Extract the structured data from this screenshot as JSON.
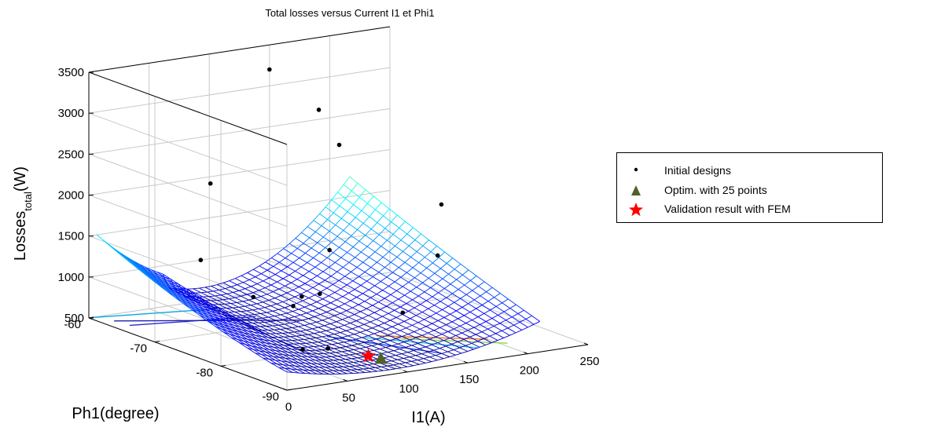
{
  "chart_data": {
    "type": "surface3d",
    "title": "Total losses versus Current I1 et Phi1",
    "xlabel": "I1(A)",
    "ylabel": "Ph1(degree)",
    "zlabel_base": "Losses",
    "zlabel_sub": "total",
    "zlabel_unit": "(W)",
    "xlim": [
      0,
      250
    ],
    "ylim": [
      -90,
      -60
    ],
    "zlim": [
      500,
      3500
    ],
    "x_ticks": [
      "0",
      "50",
      "100",
      "150",
      "200",
      "250"
    ],
    "y_ticks": [
      "-60",
      "-70",
      "-80",
      "-90"
    ],
    "z_ticks": [
      "500",
      "1000",
      "1500",
      "2000",
      "2500",
      "3000",
      "3500"
    ],
    "grid": true,
    "legend_position": "right",
    "colormap": "jet",
    "series": [
      {
        "name": "Initial designs",
        "marker": "dot",
        "color": "#000000",
        "points": [
          {
            "x": 150,
            "y": -60,
            "z": 3200
          },
          {
            "x": 180,
            "y": -62,
            "z": 2700
          },
          {
            "x": 175,
            "y": -66,
            "z": 2400
          },
          {
            "x": 205,
            "y": -76,
            "z": 1900
          },
          {
            "x": 90,
            "y": -62,
            "z": 2000
          },
          {
            "x": 180,
            "y": -80,
            "z": 1450
          },
          {
            "x": 5,
            "y": -84,
            "z": 1450
          },
          {
            "x": 145,
            "y": -70,
            "z": 1300
          },
          {
            "x": 60,
            "y": -66,
            "z": 1250
          },
          {
            "x": 60,
            "y": -80,
            "z": 1100
          },
          {
            "x": 100,
            "y": -74,
            "z": 950
          },
          {
            "x": 115,
            "y": -74,
            "z": 950
          },
          {
            "x": 140,
            "y": -82,
            "z": 900
          },
          {
            "x": 45,
            "y": -88,
            "z": 850
          },
          {
            "x": 35,
            "y": -86,
            "z": 800
          }
        ]
      },
      {
        "name": "Optim. with 25 points",
        "marker": "triangle",
        "color": "#4f6228",
        "points": [
          {
            "x": 100,
            "y": -86,
            "z": 540
          }
        ]
      },
      {
        "name": "Validation result with FEM",
        "marker": "star",
        "color": "#ff0000",
        "points": [
          {
            "x": 95,
            "y": -85,
            "z": 560
          }
        ]
      }
    ]
  },
  "legend": {
    "items": [
      {
        "label": "Initial designs"
      },
      {
        "label": "Optim. with 25 points"
      },
      {
        "label": "Validation result with FEM"
      }
    ]
  }
}
